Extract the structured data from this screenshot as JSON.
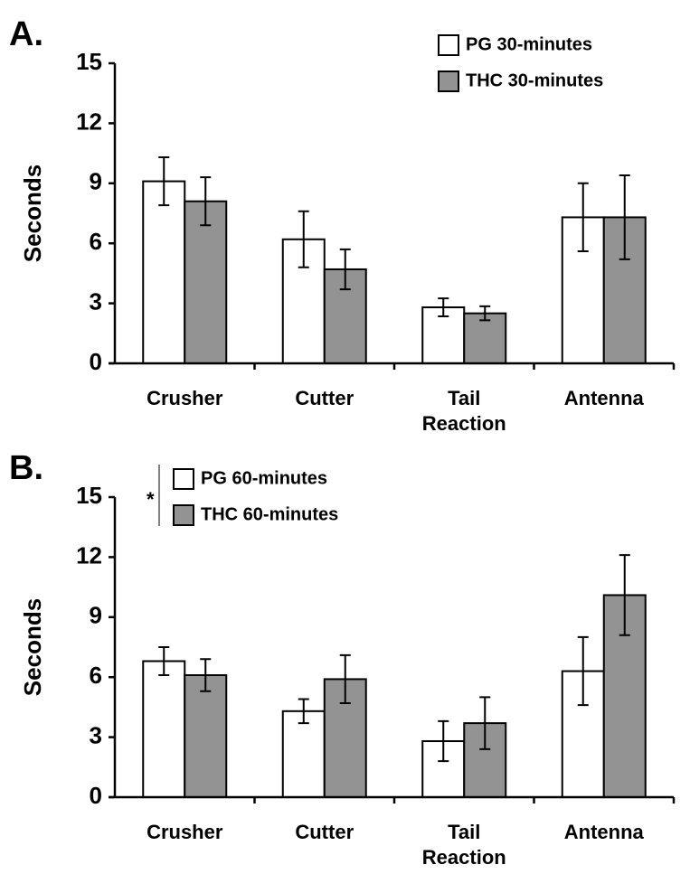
{
  "chart_data": [
    {
      "type": "bar",
      "panel_label": "A.",
      "ylabel": "Seconds",
      "categories": [
        "Crusher",
        "Cutter",
        "Tail Reaction",
        "Antenna"
      ],
      "series": [
        {
          "name": "PG 30-minutes",
          "color": "#ffffff",
          "values": [
            9.1,
            6.2,
            2.8,
            7.3
          ],
          "errors": [
            1.2,
            1.4,
            0.45,
            1.7
          ]
        },
        {
          "name": "THC 30-minutes",
          "color": "#939393",
          "values": [
            8.1,
            4.7,
            2.5,
            7.3
          ],
          "errors": [
            1.2,
            1.0,
            0.35,
            2.1
          ]
        }
      ],
      "ylim": [
        0,
        15
      ],
      "yticks": [
        0,
        3,
        6,
        9,
        12,
        15
      ],
      "legend": "upper right"
    },
    {
      "type": "bar",
      "panel_label": "B.",
      "ylabel": "Seconds",
      "annotation": "*",
      "categories": [
        "Crusher",
        "Cutter",
        "Tail Reaction",
        "Antenna"
      ],
      "series": [
        {
          "name": "PG 60-minutes",
          "color": "#ffffff",
          "values": [
            6.8,
            4.3,
            2.8,
            6.3
          ],
          "errors": [
            0.7,
            0.6,
            1.0,
            1.7
          ]
        },
        {
          "name": "THC 60-minutes",
          "color": "#939393",
          "values": [
            6.1,
            5.9,
            3.7,
            10.1
          ],
          "errors": [
            0.8,
            1.2,
            1.3,
            2.0
          ]
        }
      ],
      "ylim": [
        0,
        15
      ],
      "yticks": [
        0,
        3,
        6,
        9,
        12,
        15
      ],
      "legend": "upper left"
    }
  ]
}
